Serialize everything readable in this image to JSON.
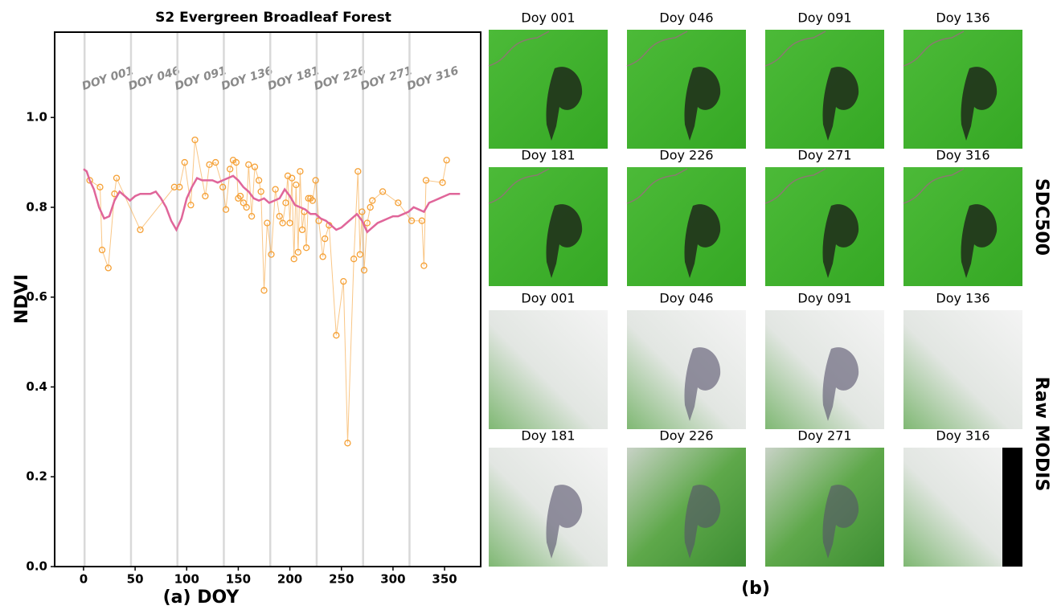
{
  "chart_data": {
    "type": "line",
    "title": "S2 Evergreen Broadleaf Forest",
    "xlabel": "(a) DOY",
    "ylabel": "NDVI",
    "xlim": [
      -28,
      385
    ],
    "ylim": [
      0,
      1.19
    ],
    "xticks": [
      0,
      50,
      100,
      150,
      200,
      250,
      300,
      350
    ],
    "yticks": [
      {
        "value": 0,
        "label": "0.0"
      },
      0.2,
      0.4,
      0.6,
      0.8,
      {
        "value": 1,
        "label": "1.0"
      }
    ],
    "doy_lines": [
      {
        "value": 1,
        "label": "DOY 001"
      },
      {
        "value": 46,
        "label": "DOY 046"
      },
      {
        "value": 91,
        "label": "DOY 091"
      },
      {
        "value": 136,
        "label": "DOY 136"
      },
      {
        "value": 181,
        "label": "DOY 181"
      },
      {
        "value": 226,
        "label": "DOY 226"
      },
      {
        "value": 271,
        "label": "DOY 271"
      },
      {
        "value": 316,
        "label": "DOY 316"
      }
    ],
    "series": [
      {
        "color": "#f5a035",
        "markers": true,
        "x": [
          6,
          16,
          18,
          24,
          30,
          32,
          55,
          88,
          93,
          98,
          104,
          108,
          118,
          122,
          128,
          135,
          138,
          142,
          145,
          148,
          150,
          152,
          155,
          158,
          160,
          163,
          166,
          170,
          172,
          175,
          178,
          182,
          186,
          190,
          193,
          196,
          198,
          200,
          202,
          204,
          206,
          208,
          210,
          212,
          214,
          216,
          218,
          220,
          222,
          225,
          228,
          232,
          234,
          238,
          245,
          252,
          256,
          262,
          266,
          268,
          270,
          272,
          275,
          278,
          280,
          290,
          305,
          318,
          328,
          330,
          332,
          348,
          352
        ],
        "values": [
          0.86,
          0.845,
          0.705,
          0.665,
          0.83,
          0.865,
          0.75,
          0.845,
          0.845,
          0.9,
          0.805,
          0.95,
          0.825,
          0.895,
          0.9,
          0.845,
          0.795,
          0.885,
          0.905,
          0.9,
          0.82,
          0.825,
          0.81,
          0.8,
          0.895,
          0.78,
          0.89,
          0.86,
          0.835,
          0.615,
          0.765,
          0.695,
          0.84,
          0.78,
          0.765,
          0.81,
          0.87,
          0.765,
          0.865,
          0.685,
          0.85,
          0.7,
          0.88,
          0.75,
          0.79,
          0.71,
          0.82,
          0.82,
          0.815,
          0.86,
          0.77,
          0.69,
          0.73,
          0.76,
          0.515,
          0.635,
          0.275,
          0.685,
          0.88,
          0.695,
          0.79,
          0.66,
          0.765,
          0.8,
          0.815,
          0.835,
          0.81,
          0.77,
          0.77,
          0.67,
          0.86,
          0.855,
          0.905
        ]
      },
      {
        "color": "#e0669a",
        "markers": false,
        "x": [
          0,
          3,
          6,
          10,
          15,
          20,
          25,
          30,
          35,
          40,
          45,
          50,
          55,
          60,
          65,
          70,
          75,
          80,
          85,
          90,
          95,
          100,
          105,
          110,
          115,
          120,
          125,
          130,
          135,
          140,
          145,
          150,
          155,
          160,
          165,
          170,
          175,
          180,
          185,
          190,
          195,
          200,
          205,
          210,
          215,
          220,
          225,
          230,
          235,
          240,
          245,
          250,
          255,
          260,
          265,
          270,
          275,
          280,
          285,
          290,
          295,
          300,
          305,
          310,
          315,
          320,
          325,
          330,
          335,
          340,
          345,
          350,
          355,
          360,
          365
        ],
        "values": [
          0.885,
          0.88,
          0.86,
          0.84,
          0.8,
          0.775,
          0.78,
          0.815,
          0.835,
          0.825,
          0.815,
          0.825,
          0.83,
          0.83,
          0.83,
          0.835,
          0.82,
          0.8,
          0.77,
          0.75,
          0.775,
          0.82,
          0.845,
          0.865,
          0.86,
          0.86,
          0.86,
          0.855,
          0.86,
          0.865,
          0.87,
          0.86,
          0.845,
          0.835,
          0.82,
          0.815,
          0.82,
          0.81,
          0.815,
          0.82,
          0.84,
          0.825,
          0.805,
          0.8,
          0.795,
          0.785,
          0.785,
          0.775,
          0.77,
          0.76,
          0.75,
          0.755,
          0.765,
          0.775,
          0.785,
          0.77,
          0.745,
          0.755,
          0.765,
          0.77,
          0.775,
          0.78,
          0.78,
          0.785,
          0.79,
          0.8,
          0.795,
          0.79,
          0.81,
          0.815,
          0.82,
          0.825,
          0.83,
          0.83,
          0.83
        ]
      }
    ]
  },
  "images": {
    "label": "(b)",
    "groups": [
      {
        "name": "SDC500",
        "titles": [
          "Doy 001",
          "Doy 046",
          "Doy 091",
          "Doy 136",
          "Doy 181",
          "Doy 226",
          "Doy 271",
          "Doy 316"
        ]
      },
      {
        "name": "Raw MODIS",
        "titles": [
          "Doy 001",
          "Doy 046",
          "Doy 091",
          "Doy 136",
          "Doy 181",
          "Doy 226",
          "Doy 271",
          "Doy 316"
        ]
      }
    ]
  }
}
